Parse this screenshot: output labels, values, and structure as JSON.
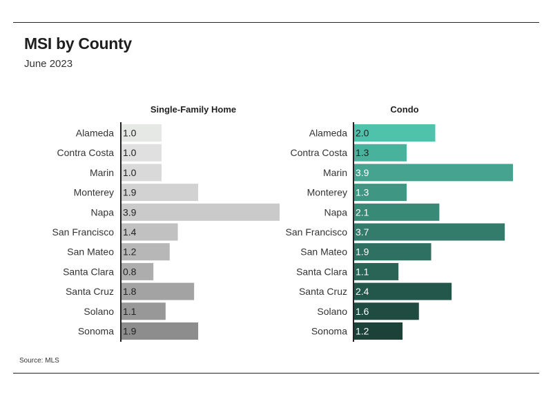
{
  "title": "MSI by County",
  "subtitle": "June 2023",
  "source": "Source:  MLS",
  "chart_data": [
    {
      "type": "bar",
      "orientation": "horizontal",
      "title": "Single-Family Home",
      "categories": [
        "Alameda",
        "Contra Costa",
        "Marin",
        "Monterey",
        "Napa",
        "San Francisco",
        "San Mateo",
        "Santa Clara",
        "Santa Cruz",
        "Solano",
        "Sonoma"
      ],
      "values": [
        1.0,
        1.0,
        1.0,
        1.9,
        3.9,
        1.4,
        1.2,
        0.8,
        1.8,
        1.1,
        1.9
      ],
      "value_labels": [
        "1.0",
        "1.0",
        "1.0",
        "1.9",
        "3.9",
        "1.4",
        "1.2",
        "0.8",
        "1.8",
        "1.1",
        "1.9"
      ],
      "colors": [
        "#e6e8e6",
        "#dfe0df",
        "#d8d9d8",
        "#d1d2d1",
        "#c9cac9",
        "#c0c1c0",
        "#b6b7b6",
        "#acadac",
        "#a2a3a2",
        "#979897",
        "#8c8d8c"
      ],
      "xlim": [
        0,
        3.9
      ],
      "grid": false,
      "legend": "none"
    },
    {
      "type": "bar",
      "orientation": "horizontal",
      "title": "Condo",
      "categories": [
        "Alameda",
        "Contra Costa",
        "Marin",
        "Monterey",
        "Napa",
        "San Francisco",
        "San Mateo",
        "Santa Clara",
        "Santa Cruz",
        "Solano",
        "Sonoma"
      ],
      "values": [
        2.0,
        1.3,
        3.9,
        1.3,
        2.1,
        3.7,
        1.9,
        1.1,
        2.4,
        1.6,
        1.2
      ],
      "value_labels": [
        "2.0",
        "1.3",
        "3.9",
        "1.3",
        "2.1",
        "3.7",
        "1.9",
        "1.1",
        "2.4",
        "1.6",
        "1.2"
      ],
      "colors": [
        "#4fc2ac",
        "#48b29d",
        "#45a38f",
        "#3f9683",
        "#398977",
        "#337c6c",
        "#2e7061",
        "#296456",
        "#24574b",
        "#1f4b41",
        "#1b4139"
      ],
      "xlim": [
        0,
        3.9
      ],
      "grid": false,
      "legend": "none"
    }
  ]
}
